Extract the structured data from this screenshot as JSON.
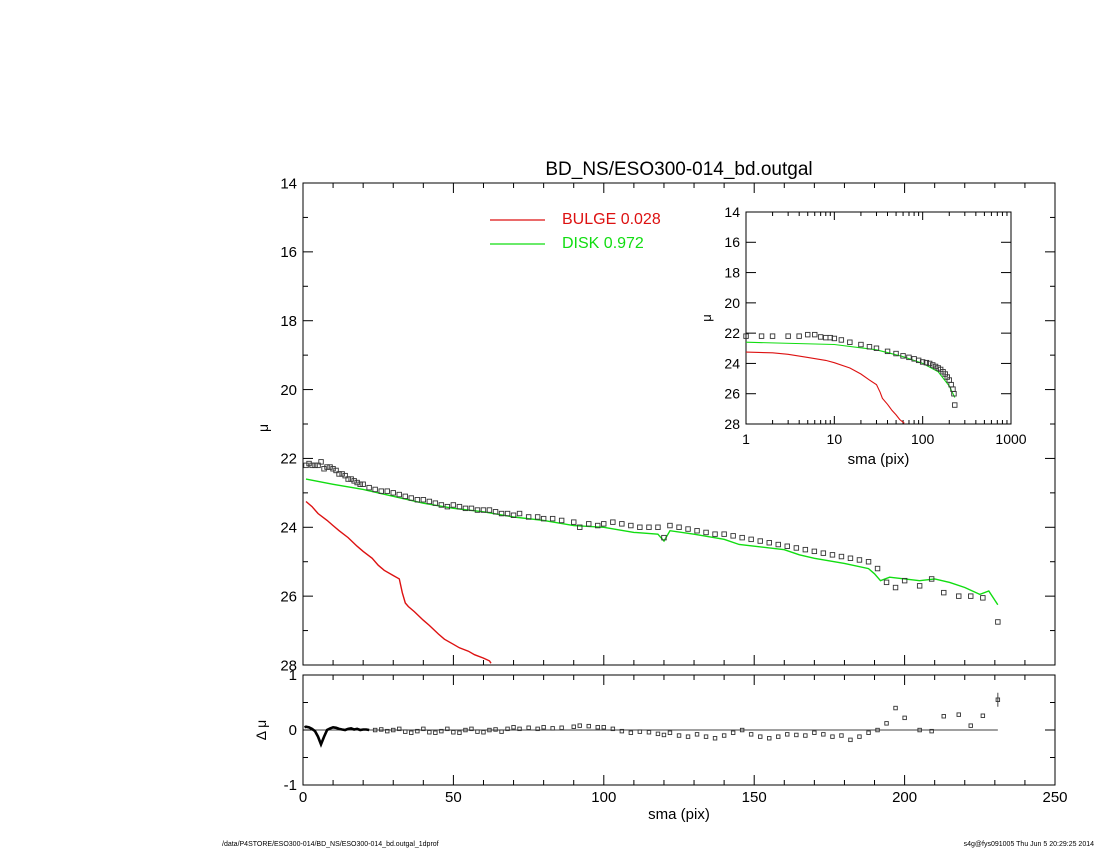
{
  "footer": {
    "left": "/data/P4STORE/ESO300-014/BD_NS/ESO300-014_bd.outgal_1dprof",
    "right": "s4g@fys091005  Thu Jun  5 20:29:25 2014"
  },
  "colors": {
    "bulge": "#dd1111",
    "disk": "#11dd11",
    "data": "#333333",
    "axis": "#000000"
  },
  "chart_data": [
    {
      "type": "line",
      "role": "main",
      "title": "BD_NS/ESO300-014_bd.outgal",
      "xlabel": "",
      "ylabel": "μ",
      "xlim": [
        0,
        250
      ],
      "ylim": [
        28,
        14
      ],
      "yticks": [
        14,
        16,
        18,
        20,
        22,
        24,
        26,
        28
      ],
      "legend_position": "top-center",
      "legend": [
        {
          "label": "BULGE  0.028",
          "color": "#dd1111"
        },
        {
          "label": "DISK  0.972",
          "color": "#11dd11"
        }
      ],
      "series": [
        {
          "name": "BULGE  0.028",
          "style": "line",
          "color": "#dd1111",
          "x": [
            1,
            3,
            5,
            8,
            10,
            12,
            15,
            18,
            20,
            23,
            25,
            27,
            30,
            32,
            33,
            34,
            35,
            37,
            40,
            42,
            45,
            47,
            50,
            52,
            55,
            57,
            60,
            62,
            62.5
          ],
          "y": [
            23.25,
            23.4,
            23.6,
            23.8,
            23.95,
            24.1,
            24.3,
            24.55,
            24.7,
            24.9,
            25.1,
            25.25,
            25.4,
            25.5,
            25.9,
            26.2,
            26.3,
            26.45,
            26.7,
            26.85,
            27.1,
            27.25,
            27.4,
            27.5,
            27.6,
            27.7,
            27.8,
            27.88,
            27.95
          ]
        },
        {
          "name": "DISK  0.972",
          "style": "line",
          "color": "#11dd11",
          "x": [
            1,
            10,
            20,
            30,
            40,
            50,
            60,
            70,
            80,
            90,
            100,
            110,
            118,
            120,
            122,
            130,
            140,
            145,
            150,
            160,
            165,
            170,
            180,
            188,
            190,
            192,
            195,
            200,
            205,
            210,
            215,
            220,
            225,
            228,
            231
          ],
          "y": [
            22.6,
            22.75,
            22.9,
            23.1,
            23.3,
            23.45,
            23.55,
            23.7,
            23.8,
            23.95,
            24.0,
            24.15,
            24.2,
            24.4,
            24.1,
            24.2,
            24.35,
            24.5,
            24.55,
            24.65,
            24.8,
            24.9,
            25.05,
            25.2,
            25.35,
            25.55,
            25.45,
            25.5,
            25.55,
            25.5,
            25.6,
            25.75,
            25.95,
            25.85,
            26.25
          ]
        },
        {
          "name": "",
          "style": "points",
          "color": "#333333",
          "x": [
            1,
            2,
            3,
            4,
            5,
            6,
            7,
            8,
            9,
            10,
            11,
            12,
            13,
            14,
            15,
            16,
            17,
            18,
            19,
            20,
            22,
            24,
            26,
            28,
            30,
            32,
            34,
            36,
            38,
            40,
            42,
            44,
            46,
            48,
            50,
            52,
            54,
            56,
            58,
            60,
            62,
            64,
            66,
            68,
            70,
            72,
            75,
            78,
            80,
            83,
            86,
            90,
            92,
            95,
            98,
            100,
            103,
            106,
            109,
            112,
            115,
            118,
            120,
            122,
            125,
            128,
            131,
            134,
            137,
            140,
            143,
            146,
            149,
            152,
            155,
            158,
            161,
            164,
            167,
            170,
            173,
            176,
            179,
            182,
            185,
            188,
            191,
            194,
            197,
            200,
            205,
            209,
            213,
            218,
            222,
            226,
            231
          ],
          "y": [
            22.2,
            22.15,
            22.2,
            22.2,
            22.2,
            22.1,
            22.3,
            22.25,
            22.25,
            22.3,
            22.35,
            22.45,
            22.45,
            22.5,
            22.6,
            22.6,
            22.65,
            22.7,
            22.75,
            22.75,
            22.85,
            22.9,
            22.95,
            22.95,
            23.0,
            23.05,
            23.1,
            23.15,
            23.2,
            23.2,
            23.25,
            23.3,
            23.35,
            23.4,
            23.35,
            23.4,
            23.45,
            23.45,
            23.5,
            23.5,
            23.5,
            23.55,
            23.6,
            23.6,
            23.65,
            23.6,
            23.7,
            23.7,
            23.75,
            23.75,
            23.8,
            23.85,
            24.0,
            23.9,
            23.95,
            23.9,
            23.85,
            23.9,
            23.95,
            24.0,
            24.0,
            24.0,
            24.3,
            23.95,
            24.0,
            24.05,
            24.1,
            24.15,
            24.2,
            24.2,
            24.25,
            24.3,
            24.35,
            24.4,
            24.45,
            24.5,
            24.55,
            24.6,
            24.65,
            24.7,
            24.75,
            24.8,
            24.85,
            24.9,
            24.95,
            25.0,
            25.2,
            25.6,
            25.75,
            25.55,
            25.7,
            25.5,
            25.9,
            26.0,
            26.0,
            26.05,
            26.75
          ]
        }
      ]
    },
    {
      "type": "line",
      "role": "inset",
      "xlabel": "sma (pix)",
      "ylabel": "μ",
      "xscale": "log",
      "xlim": [
        1,
        1000
      ],
      "ylim": [
        28,
        14
      ],
      "xticks": [
        1,
        10,
        100,
        1000
      ],
      "yticks": [
        14,
        16,
        18,
        20,
        22,
        24,
        26,
        28
      ],
      "series": [
        {
          "name": "BULGE  0.028",
          "style": "line",
          "color": "#dd1111",
          "x": [
            1,
            2,
            3,
            5,
            8,
            10,
            15,
            20,
            25,
            30,
            33,
            35,
            40,
            45,
            50,
            55,
            62
          ],
          "y": [
            23.25,
            23.3,
            23.4,
            23.6,
            23.8,
            23.95,
            24.3,
            24.7,
            25.1,
            25.4,
            25.9,
            26.3,
            26.7,
            27.1,
            27.4,
            27.7,
            27.95
          ]
        },
        {
          "name": "DISK  0.972",
          "style": "line",
          "color": "#11dd11",
          "x": [
            1,
            10,
            30,
            60,
            100,
            150,
            200,
            231
          ],
          "y": [
            22.6,
            22.75,
            23.1,
            23.55,
            24.0,
            24.55,
            25.5,
            26.25
          ]
        },
        {
          "name": "",
          "style": "points",
          "color": "#333333",
          "x": [
            1,
            1.5,
            2,
            3,
            4,
            5,
            6,
            7,
            8,
            9,
            10,
            12,
            15,
            20,
            25,
            30,
            40,
            50,
            60,
            70,
            80,
            90,
            100,
            110,
            120,
            130,
            140,
            150,
            160,
            170,
            180,
            190,
            200,
            210,
            220,
            226,
            231
          ],
          "y": [
            22.2,
            22.2,
            22.2,
            22.2,
            22.2,
            22.1,
            22.1,
            22.25,
            22.3,
            22.3,
            22.35,
            22.45,
            22.6,
            22.75,
            22.9,
            23.0,
            23.2,
            23.35,
            23.5,
            23.6,
            23.7,
            23.8,
            23.9,
            23.95,
            24.0,
            24.1,
            24.2,
            24.3,
            24.4,
            24.55,
            24.7,
            24.9,
            25.1,
            25.4,
            25.7,
            26.0,
            26.75
          ]
        }
      ]
    },
    {
      "type": "scatter",
      "role": "residual",
      "xlabel": "sma (pix)",
      "ylabel": "Δ μ",
      "xlim": [
        0,
        250
      ],
      "ylim": [
        -1,
        1
      ],
      "xticks": [
        0,
        50,
        100,
        150,
        200,
        250
      ],
      "yticks": [
        -1,
        0,
        1
      ],
      "zero_line_xlim": [
        0,
        231
      ],
      "series": [
        {
          "name": "",
          "style": "line",
          "color": "#000000",
          "x": [
            0.5,
            1,
            2,
            3,
            4,
            5,
            6,
            7,
            8,
            9,
            10,
            11,
            12,
            13,
            14,
            15,
            16,
            17,
            18,
            19,
            20,
            21,
            22
          ],
          "y": [
            0.05,
            0.06,
            0.05,
            0.02,
            -0.02,
            -0.12,
            -0.26,
            -0.12,
            0.0,
            0.03,
            0.05,
            0.04,
            0.02,
            0.01,
            0.0,
            0.02,
            0.03,
            0.01,
            0.02,
            0.0,
            0.01,
            0.01,
            0.0
          ]
        },
        {
          "name": "",
          "style": "points",
          "color": "#333333",
          "x": [
            24,
            26,
            28,
            30,
            32,
            34,
            36,
            38,
            40,
            42,
            44,
            46,
            48,
            50,
            52,
            54,
            56,
            58,
            60,
            62,
            64,
            66,
            68,
            70,
            72,
            75,
            78,
            80,
            83,
            86,
            90,
            92,
            95,
            98,
            100,
            103,
            106,
            109,
            112,
            115,
            118,
            120,
            122,
            125,
            128,
            131,
            134,
            137,
            140,
            143,
            146,
            149,
            152,
            155,
            158,
            161,
            164,
            167,
            170,
            173,
            176,
            179,
            182,
            185,
            188,
            191,
            194,
            197,
            200,
            205,
            209,
            213,
            218,
            222,
            226,
            231
          ],
          "y": [
            0.0,
            0.01,
            -0.02,
            0.0,
            0.02,
            -0.03,
            -0.05,
            -0.02,
            0.02,
            -0.04,
            -0.05,
            -0.02,
            0.02,
            -0.04,
            -0.05,
            0.0,
            0.02,
            -0.03,
            -0.04,
            0.0,
            0.01,
            -0.03,
            0.02,
            0.05,
            0.02,
            0.04,
            0.02,
            0.05,
            0.03,
            0.04,
            0.06,
            0.08,
            0.07,
            0.05,
            0.05,
            0.02,
            -0.02,
            -0.05,
            -0.03,
            -0.04,
            -0.07,
            -0.09,
            -0.05,
            -0.1,
            -0.12,
            -0.08,
            -0.12,
            -0.15,
            -0.1,
            -0.05,
            0.0,
            -0.08,
            -0.12,
            -0.15,
            -0.12,
            -0.08,
            -0.09,
            -0.1,
            -0.05,
            -0.08,
            -0.12,
            -0.1,
            -0.18,
            -0.12,
            -0.05,
            0.0,
            0.12,
            0.4,
            0.22,
            0.0,
            -0.02,
            0.25,
            0.28,
            0.08,
            0.26,
            0.55
          ]
        }
      ]
    }
  ]
}
